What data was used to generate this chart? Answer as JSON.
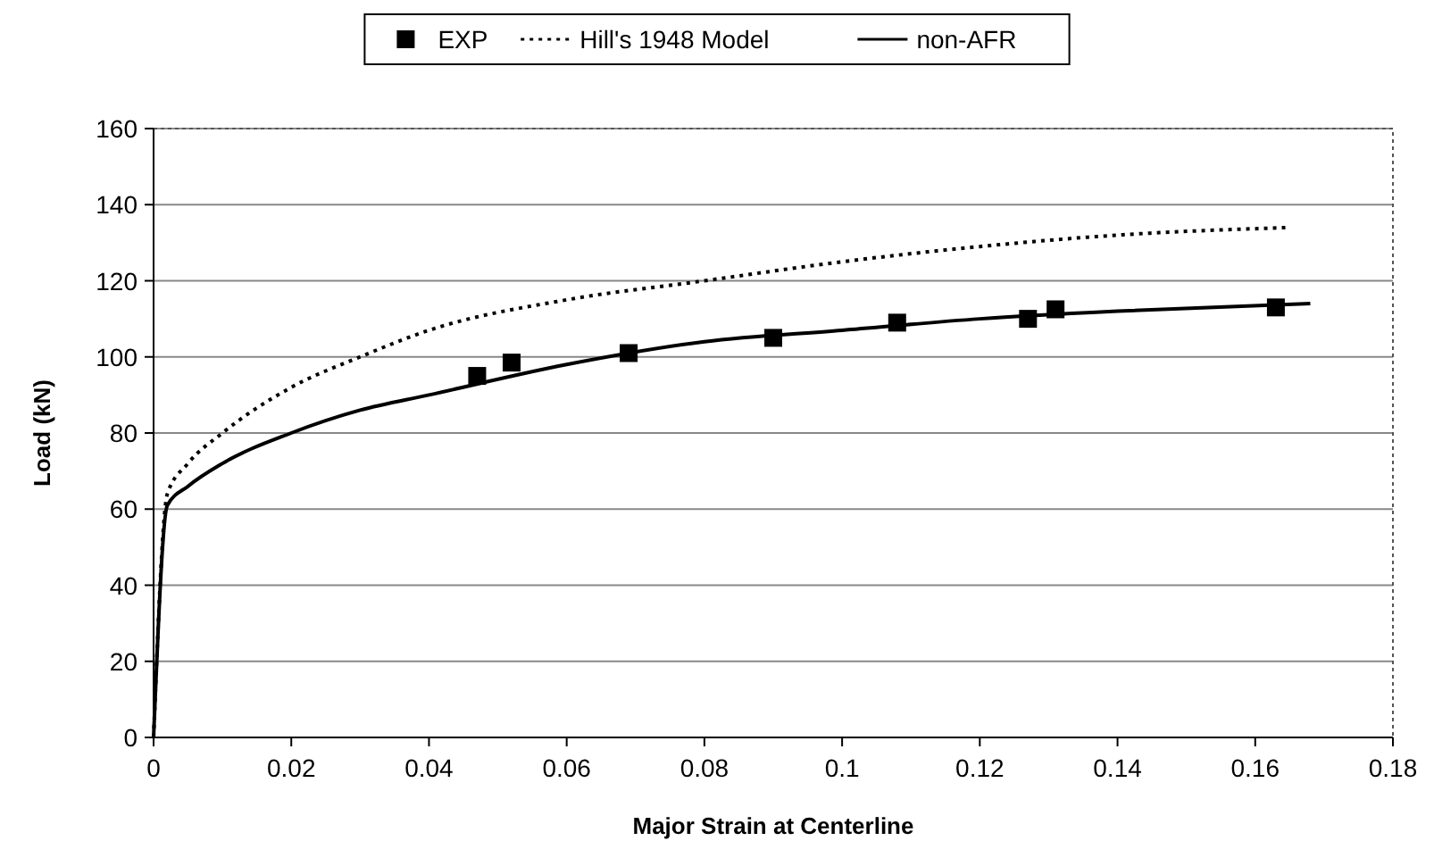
{
  "chart_data": {
    "type": "line",
    "xlabel": "Major Strain at Centerline",
    "ylabel": "Load (kN)",
    "xlim": [
      0,
      0.18
    ],
    "xticks": [
      0,
      0.02,
      0.04,
      0.06,
      0.08,
      0.1,
      0.12,
      0.14,
      0.16,
      0.18
    ],
    "ylim": [
      0,
      160
    ],
    "yticks": [
      0,
      20,
      40,
      60,
      80,
      100,
      120,
      140,
      160
    ],
    "grid": "y",
    "legend": "top",
    "series": [
      {
        "name": "EXP",
        "type": "scatter",
        "marker": "square",
        "color": "#000000",
        "x": [
          0.047,
          0.052,
          0.069,
          0.09,
          0.108,
          0.127,
          0.131,
          0.163
        ],
        "values": [
          95,
          98.5,
          101,
          105,
          109,
          110,
          112.5,
          113
        ]
      },
      {
        "name": "Hill's 1948 Model",
        "type": "line",
        "line_style": "dotted",
        "color": "#000000",
        "x": [
          0,
          0.002,
          0.005,
          0.01,
          0.02,
          0.03,
          0.04,
          0.06,
          0.08,
          0.1,
          0.12,
          0.14,
          0.165
        ],
        "values": [
          0,
          64,
          72,
          80,
          92,
          100,
          107,
          115,
          120,
          125,
          129,
          132,
          134
        ]
      },
      {
        "name": "non-AFR",
        "type": "line",
        "line_style": "solid",
        "color": "#000000",
        "x": [
          0,
          0.002,
          0.005,
          0.01,
          0.02,
          0.03,
          0.04,
          0.06,
          0.08,
          0.1,
          0.12,
          0.14,
          0.168
        ],
        "values": [
          0,
          61,
          66,
          72,
          80,
          86,
          90,
          98,
          104,
          107,
          110,
          112,
          114
        ]
      }
    ]
  }
}
